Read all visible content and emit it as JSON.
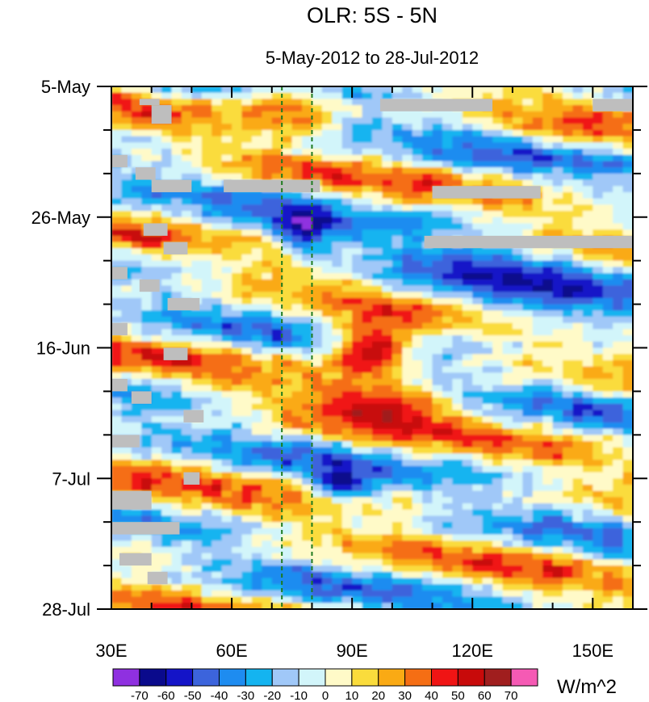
{
  "chart_data": {
    "type": "heatmap",
    "title": "OLR: 5S - 5N",
    "subtitle": "5-May-2012 to 28-Jul-2012",
    "x_axis": {
      "label": "",
      "range": [
        30,
        160
      ],
      "ticks": [
        {
          "value": 30,
          "label": "30E"
        },
        {
          "value": 60,
          "label": "60E"
        },
        {
          "value": 90,
          "label": "90E"
        },
        {
          "value": 120,
          "label": "120E"
        },
        {
          "value": 150,
          "label": "150E"
        }
      ],
      "minor_step": 10
    },
    "y_axis": {
      "label": "",
      "range_days": [
        0,
        84
      ],
      "ticks": [
        {
          "value": 0,
          "label": "5-May"
        },
        {
          "value": 21,
          "label": "26-May"
        },
        {
          "value": 42,
          "label": "16-Jun"
        },
        {
          "value": 63,
          "label": "7-Jul"
        },
        {
          "value": 84,
          "label": "28-Jul"
        }
      ],
      "minor_step": 7
    },
    "reference_lines_lon": [
      72.5,
      80
    ],
    "colorbar": {
      "units": "W/m^2",
      "levels": [
        "-70",
        "-60",
        "-50",
        "-40",
        "-30",
        "-20",
        "-10",
        "0",
        "10",
        "20",
        "30",
        "40",
        "50",
        "60",
        "70"
      ],
      "colors": [
        "#8f30e0",
        "#0a0a8c",
        "#1414c8",
        "#3c64dc",
        "#1e8cf0",
        "#14b4f0",
        "#a0c8f8",
        "#d2f5fa",
        "#fffac8",
        "#fadc3c",
        "#faaa14",
        "#f56e14",
        "#f01414",
        "#c80a0a",
        "#a01e1e",
        "#f55ab4"
      ]
    },
    "features": [
      {
        "kind": "positive_anomaly",
        "peak": 70,
        "lon": [
          85,
          105
        ],
        "days": [
          38,
          46
        ]
      },
      {
        "kind": "positive_anomaly",
        "peak": 50,
        "lon": [
          80,
          115
        ],
        "days": [
          49,
          54
        ]
      },
      {
        "kind": "positive_anomaly",
        "peak": 40,
        "lon": [
          62,
          85
        ],
        "days": [
          0,
          6
        ]
      },
      {
        "kind": "negative_anomaly",
        "peak": -60,
        "lon": [
          72,
          84
        ],
        "days": [
          20,
          26
        ]
      },
      {
        "kind": "negative_anomaly",
        "peak": -60,
        "lon": [
          82,
          92
        ],
        "days": [
          62,
          66
        ]
      },
      {
        "kind": "negative_propagating_band",
        "peak": -40,
        "lon": [
          100,
          160
        ],
        "days": [
          26,
          38
        ]
      }
    ],
    "missing_data": [
      {
        "lon": [
          37,
          42
        ],
        "days": [
          2,
          3
        ]
      },
      {
        "lon": [
          40,
          45
        ],
        "days": [
          3,
          6
        ]
      },
      {
        "lon": [
          30,
          34
        ],
        "days": [
          11,
          13
        ]
      },
      {
        "lon": [
          36,
          41
        ],
        "days": [
          13,
          15
        ]
      },
      {
        "lon": [
          40,
          50
        ],
        "days": [
          15,
          17
        ]
      },
      {
        "lon": [
          58,
          82
        ],
        "days": [
          15,
          17
        ]
      },
      {
        "lon": [
          110,
          137
        ],
        "days": [
          16,
          18
        ]
      },
      {
        "lon": [
          97,
          125
        ],
        "days": [
          2,
          4
        ]
      },
      {
        "lon": [
          150,
          160
        ],
        "days": [
          2,
          4
        ]
      },
      {
        "lon": [
          38,
          44
        ],
        "days": [
          22,
          24
        ]
      },
      {
        "lon": [
          43,
          49
        ],
        "days": [
          25,
          27
        ]
      },
      {
        "lon": [
          108,
          160
        ],
        "days": [
          24,
          26
        ]
      },
      {
        "lon": [
          30,
          34
        ],
        "days": [
          29,
          31
        ]
      },
      {
        "lon": [
          37,
          42
        ],
        "days": [
          31,
          33
        ]
      },
      {
        "lon": [
          44,
          52
        ],
        "days": [
          34,
          36
        ]
      },
      {
        "lon": [
          30,
          34
        ],
        "days": [
          38,
          40
        ]
      },
      {
        "lon": [
          43,
          49
        ],
        "days": [
          42,
          44
        ]
      },
      {
        "lon": [
          30,
          34
        ],
        "days": [
          47,
          49
        ]
      },
      {
        "lon": [
          35,
          40
        ],
        "days": [
          49,
          51
        ]
      },
      {
        "lon": [
          48,
          53
        ],
        "days": [
          52,
          54
        ]
      },
      {
        "lon": [
          30,
          37
        ],
        "days": [
          56,
          58
        ]
      },
      {
        "lon": [
          48,
          52
        ],
        "days": [
          62,
          64
        ]
      },
      {
        "lon": [
          30,
          40
        ],
        "days": [
          65,
          68
        ]
      },
      {
        "lon": [
          30,
          47
        ],
        "days": [
          70,
          72
        ]
      },
      {
        "lon": [
          32,
          40
        ],
        "days": [
          75,
          77
        ]
      },
      {
        "lon": [
          39,
          44
        ],
        "days": [
          78,
          80
        ]
      }
    ]
  }
}
